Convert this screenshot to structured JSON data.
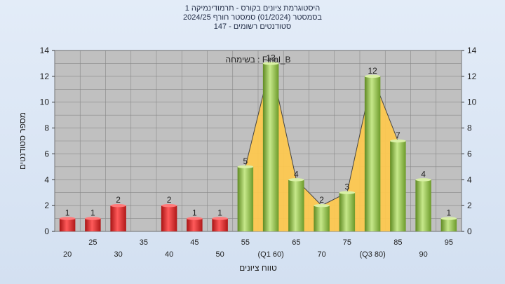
{
  "chart_data": {
    "type": "bar",
    "title_lines": [
      "היסטוגרמת ציונים בקורס - תרמודינמיקה 1",
      "בסמסטר  (01/2024)  סמסטר חורף 2024/25",
      "סטודנטים רשומים - 147"
    ],
    "annotation": "בשימחה : Final_B",
    "xlabel": "טווח ציונים",
    "ylabel": "מספר סטודנטים",
    "ylim": [
      0,
      14
    ],
    "y_ticks": [
      0,
      2,
      4,
      6,
      8,
      10,
      12,
      14
    ],
    "categories": [
      20,
      25,
      30,
      35,
      40,
      45,
      50,
      55,
      60,
      65,
      70,
      75,
      80,
      85,
      90,
      95
    ],
    "values": [
      1,
      1,
      2,
      0,
      2,
      1,
      1,
      5,
      13,
      4,
      2,
      3,
      12,
      7,
      4,
      1
    ],
    "category_labels": [
      "20",
      "25",
      "30",
      "35",
      "40",
      "45",
      "50",
      "55",
      "(Q1 60)",
      "65",
      "70",
      "75",
      "(Q3 80)",
      "85",
      "90",
      "95"
    ],
    "grid": true,
    "fail_threshold": 55,
    "colors": {
      "fail_bar": "#e23a3a",
      "pass_bar": "#8fbb45",
      "area_fill": "#ffc94d",
      "plot_bg": "#c0c0c0",
      "grid": "#888888"
    }
  }
}
